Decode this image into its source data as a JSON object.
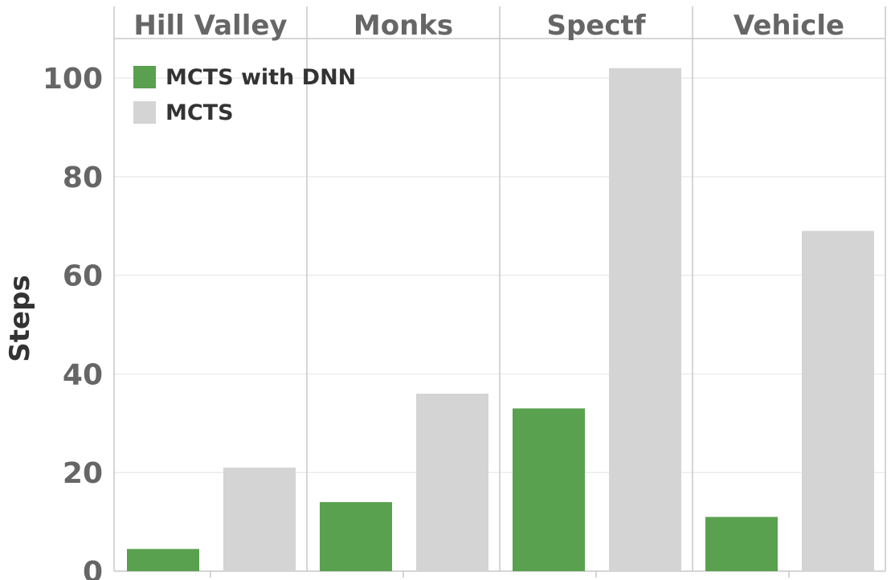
{
  "chart_data": {
    "type": "bar",
    "categories": [
      "Hill Valley",
      "Monks",
      "Spectf",
      "Vehicle"
    ],
    "series": [
      {
        "name": "MCTS with DNN",
        "values": [
          4.5,
          14,
          33,
          11
        ],
        "color": "#59a14f"
      },
      {
        "name": "MCTS",
        "values": [
          21,
          36,
          102,
          69
        ],
        "color": "#d4d4d4"
      }
    ],
    "title": "",
    "xlabel": "",
    "ylabel": "Steps",
    "ylim": [
      0,
      108
    ],
    "yticks": [
      0,
      20,
      40,
      60,
      80,
      100
    ],
    "grid": true,
    "legend_position": "top-left"
  }
}
